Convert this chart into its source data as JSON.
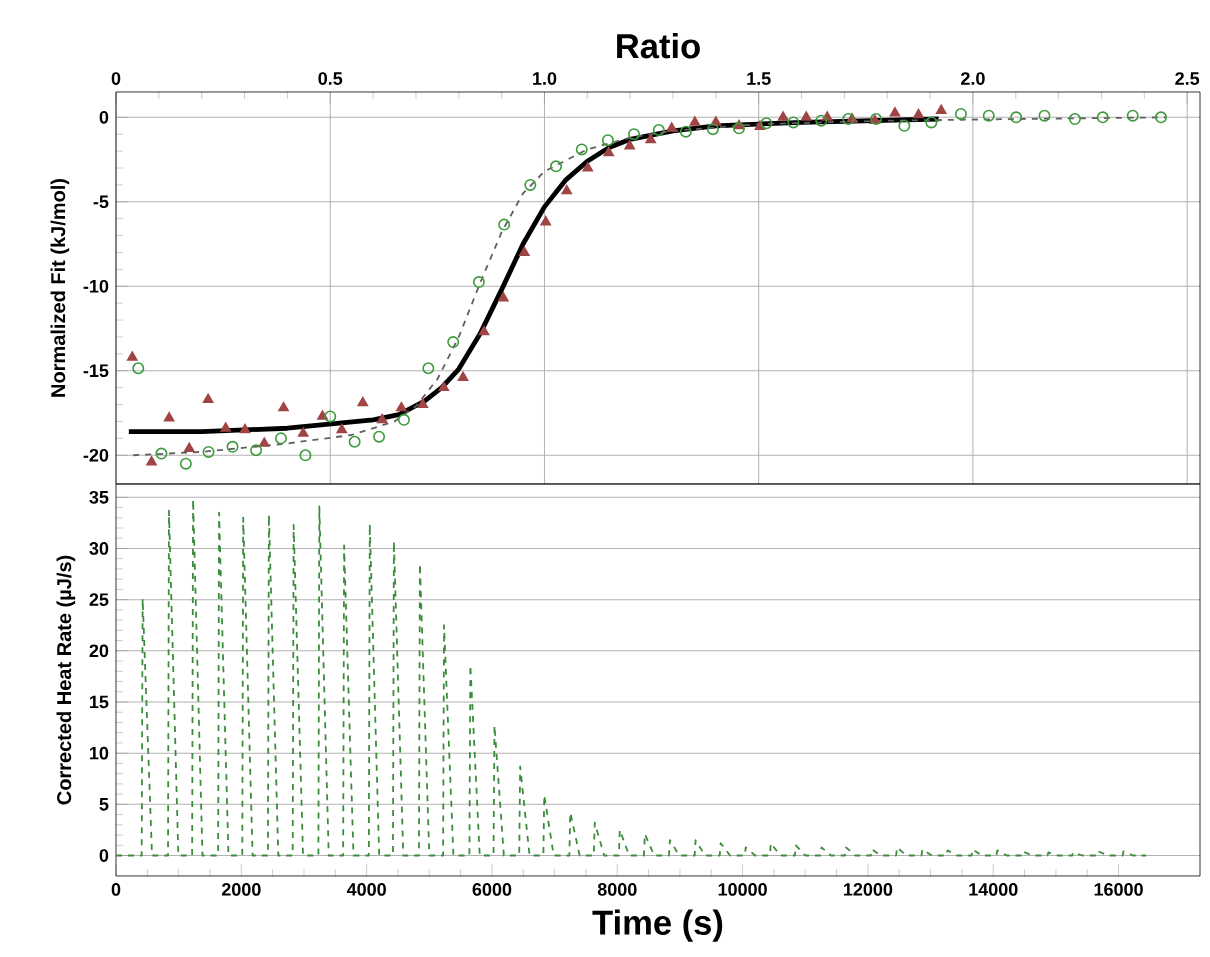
{
  "chart_data": [
    {
      "type": "scatter",
      "xlabel": "Ratio",
      "ylabel": "Normalized Fit (kJ/mol)",
      "xlim": [
        0,
        2.53
      ],
      "ylim": [
        -21.7,
        1.5
      ],
      "xticks": [
        0,
        0.5,
        {
          "value": 1,
          "label": "1.0"
        },
        1.5,
        {
          "value": 2,
          "label": "2.0"
        },
        2.5
      ],
      "yticks": [
        -20,
        -15,
        -10,
        -5,
        0
      ],
      "grid": true,
      "series": [
        {
          "marker": "triangle",
          "color": "#a04545",
          "x": [
            0.038,
            0.083,
            0.124,
            0.171,
            0.215,
            0.256,
            0.301,
            0.346,
            0.391,
            0.437,
            0.482,
            0.527,
            0.576,
            0.621,
            0.666,
            0.716,
            0.765,
            0.81,
            0.859,
            0.904,
            0.953,
            1.003,
            1.052,
            1.101,
            1.15,
            1.199,
            1.248,
            1.297,
            1.351,
            1.4,
            1.454,
            1.503,
            1.557,
            1.611,
            1.66,
            1.718,
            1.771,
            1.818,
            1.873,
            1.926
          ],
          "values": [
            -14.2,
            -20.4,
            -17.8,
            -19.6,
            -16.7,
            -18.4,
            -18.5,
            -19.3,
            -17.2,
            -18.7,
            -17.7,
            -18.5,
            -16.9,
            -17.9,
            -17.2,
            -17.0,
            -16.0,
            -15.4,
            -12.7,
            -10.7,
            -8.0,
            -6.2,
            -4.35,
            -3.0,
            -2.1,
            -1.7,
            -1.33,
            -0.65,
            -0.3,
            -0.3,
            -0.5,
            -0.55,
            0.0,
            0.0,
            0.0,
            -0.1,
            -0.2,
            0.25,
            0.15,
            0.4
          ]
        },
        {
          "marker": "circle",
          "color": "#3c9a3c",
          "x": [
            0.052,
            0.106,
            0.163,
            0.216,
            0.272,
            0.327,
            0.385,
            0.442,
            0.5,
            0.557,
            0.614,
            0.672,
            0.729,
            0.787,
            0.847,
            0.906,
            0.967,
            1.027,
            1.087,
            1.148,
            1.209,
            1.267,
            1.33,
            1.393,
            1.454,
            1.518,
            1.581,
            1.646,
            1.709,
            1.774,
            1.84,
            1.903,
            1.972,
            2.037,
            2.101,
            2.167,
            2.238,
            2.303,
            2.373,
            2.439
          ],
          "values": [
            -14.85,
            -19.9,
            -20.5,
            -19.8,
            -19.5,
            -19.7,
            -19.0,
            -20.0,
            -17.7,
            -19.2,
            -18.9,
            -17.9,
            -14.85,
            -13.3,
            -9.75,
            -6.35,
            -4.0,
            -2.9,
            -1.9,
            -1.35,
            -1.0,
            -0.75,
            -0.85,
            -0.7,
            -0.65,
            -0.35,
            -0.3,
            -0.2,
            -0.1,
            -0.1,
            -0.5,
            -0.3,
            0.2,
            0.1,
            0.0,
            0.1,
            -0.1,
            0.0,
            0.1,
            0.0
          ]
        },
        {
          "type": "line",
          "line_style": "solid",
          "color": "#000000",
          "x": [
            0.03,
            0.2,
            0.4,
            0.6,
            0.66,
            0.72,
            0.76,
            0.8,
            0.85,
            0.9,
            0.95,
            1.0,
            1.05,
            1.1,
            1.15,
            1.2,
            1.3,
            1.4,
            1.6,
            1.92
          ],
          "values": [
            -18.6,
            -18.6,
            -18.4,
            -17.9,
            -17.6,
            -16.8,
            -16.0,
            -14.9,
            -12.8,
            -10.2,
            -7.5,
            -5.3,
            -3.7,
            -2.6,
            -1.8,
            -1.3,
            -0.8,
            -0.5,
            -0.3,
            -0.1
          ]
        },
        {
          "type": "line",
          "line_style": "dashed",
          "color": "#606060",
          "x": [
            0.04,
            0.2,
            0.4,
            0.55,
            0.65,
            0.7,
            0.75,
            0.8,
            0.85,
            0.9,
            0.95,
            1.0,
            1.1,
            1.2,
            1.3,
            1.5,
            1.8,
            2.1,
            2.45
          ],
          "values": [
            -20.0,
            -19.8,
            -19.3,
            -18.8,
            -18.0,
            -17.1,
            -15.5,
            -13.0,
            -9.8,
            -6.8,
            -4.5,
            -3.2,
            -1.9,
            -1.2,
            -0.8,
            -0.4,
            -0.2,
            -0.1,
            0.0
          ]
        }
      ]
    },
    {
      "type": "line",
      "xlabel": "Time (s)",
      "ylabel": "Corrected Heat Rate (µJ/s)",
      "xlim": [
        0,
        17300
      ],
      "ylim": [
        -2,
        36.3
      ],
      "xticks": [
        0,
        2000,
        4000,
        6000,
        8000,
        10000,
        12000,
        14000,
        16000
      ],
      "yticks": [
        0,
        5,
        10,
        15,
        20,
        25,
        30,
        35
      ],
      "grid": "y",
      "series": [
        {
          "line_style": "dashed",
          "color": "#3c8c3c",
          "x": [
            0,
            410,
            425,
            575,
            830,
            845,
            995,
            1215,
            1230,
            1380,
            1630,
            1645,
            1795,
            2015,
            2030,
            2180,
            2425,
            2440,
            2590,
            2820,
            2835,
            2985,
            3230,
            3245,
            3395,
            3625,
            3640,
            3790,
            4035,
            4050,
            4200,
            4420,
            4435,
            4585,
            4835,
            4850,
            5000,
            5220,
            5235,
            5385,
            5640,
            5655,
            5805,
            6025,
            6040,
            6190,
            6435,
            6450,
            6600,
            6820,
            6835,
            6985,
            7235,
            7250,
            7400,
            7625,
            7640,
            7790,
            8025,
            8040,
            8190,
            8425,
            8440,
            8590,
            8825,
            8840,
            8990,
            9235,
            9250,
            9400,
            9635,
            9650,
            9800,
            10035,
            10050,
            10200,
            10435,
            10450,
            10600,
            10835,
            10850,
            11000,
            11245,
            11260,
            11410,
            11635,
            11650,
            11800,
            12045,
            12060,
            12210,
            12450,
            12465,
            12615,
            12855,
            12870,
            13020,
            13255,
            13270,
            13420,
            13655,
            13670,
            13820,
            14050,
            14065,
            14215,
            14455,
            14470,
            14620,
            14865,
            14880,
            15030,
            15260,
            15275,
            15425,
            15665,
            15680,
            15830,
            16065,
            16080,
            16230,
            16440
          ],
          "values": [
            0,
            0,
            25.1,
            0,
            0,
            33.7,
            0,
            0,
            34.8,
            0,
            0,
            33.5,
            0,
            0,
            33.0,
            0,
            0,
            33.3,
            0,
            0,
            32.3,
            0,
            0,
            34.1,
            0,
            0,
            30.3,
            0,
            0,
            32.4,
            0,
            0,
            30.7,
            0,
            0,
            28.5,
            0,
            0,
            22.5,
            0,
            0,
            18.6,
            0,
            0,
            12.7,
            0,
            0,
            8.7,
            0,
            0,
            5.9,
            0,
            0,
            4.2,
            0,
            0,
            3.2,
            0,
            0,
            2.5,
            0,
            0,
            2.1,
            0,
            0,
            1.5,
            0,
            0,
            1.5,
            0,
            0,
            1.2,
            0,
            0,
            0.8,
            0,
            0,
            1.2,
            0,
            0,
            1.0,
            0,
            0,
            0.8,
            0,
            0,
            0.8,
            0,
            0,
            0.6,
            0,
            0,
            0.8,
            0,
            0,
            0.6,
            0,
            0,
            0.5,
            0,
            0,
            0.6,
            0,
            0,
            0.5,
            0,
            0,
            0.4,
            0,
            0,
            0.3,
            0,
            0,
            0.3,
            0,
            0,
            0.4,
            0,
            0,
            0.4,
            0,
            0
          ]
        }
      ]
    }
  ]
}
